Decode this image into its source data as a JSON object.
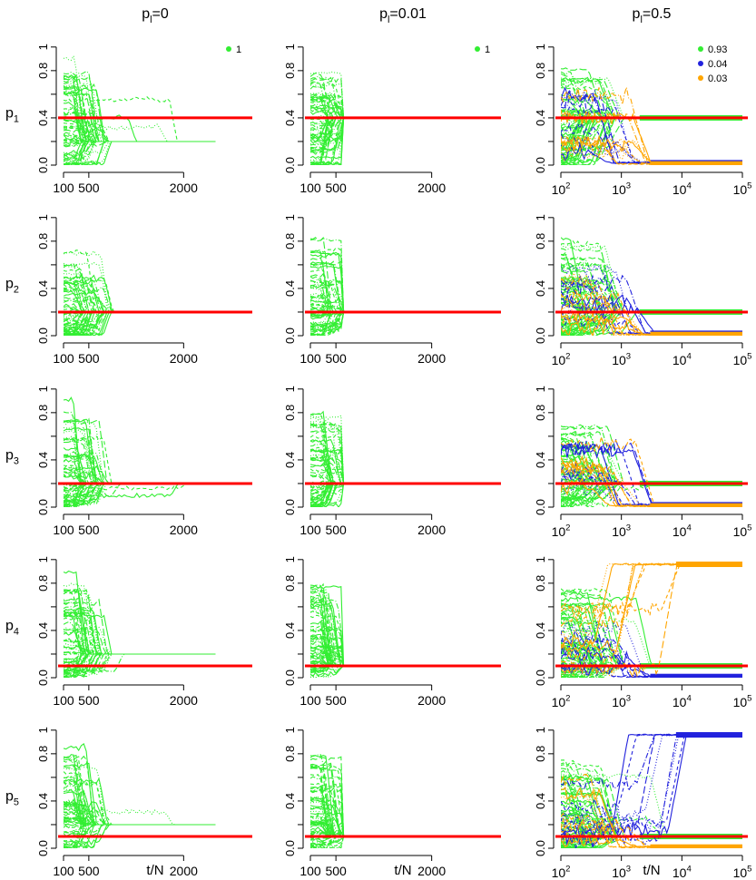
{
  "column_titles": [
    {
      "base": "p",
      "sub": "l",
      "rest": "=0"
    },
    {
      "base": "p",
      "sub": "l",
      "rest": "=0.01"
    },
    {
      "base": "p",
      "sub": "l",
      "rest": "=0.5"
    }
  ],
  "row_labels": [
    {
      "base": "p",
      "sub": "1"
    },
    {
      "base": "p",
      "sub": "2"
    },
    {
      "base": "p",
      "sub": "3"
    },
    {
      "base": "p",
      "sub": "4"
    },
    {
      "base": "p",
      "sub": "5"
    }
  ],
  "xlabel": "t/N",
  "colors": {
    "green": "#33ee33",
    "blue": "#2222dd",
    "orange": "#ffa500",
    "red": "#ff0000",
    "axis": "#000000"
  },
  "yaxis": {
    "ylim": [
      0,
      1
    ],
    "ticks": [
      "0.0",
      "0.4",
      "0.8"
    ],
    "unlabeled_ticks": [
      "0.2",
      "0.6",
      "1"
    ]
  },
  "xaxis_linear": {
    "xlim": [
      100,
      3000
    ],
    "ticks": [
      "100",
      "500",
      "2000"
    ]
  },
  "xaxis_log": {
    "xlim": [
      100,
      100000
    ],
    "scale": "log",
    "ticks": [
      {
        "base": "10",
        "exp": "2"
      },
      {
        "base": "10",
        "exp": "3"
      },
      {
        "base": "10",
        "exp": "4"
      },
      {
        "base": "10",
        "exp": "5"
      }
    ]
  },
  "legends": [
    {
      "entries": [
        {
          "label": "1",
          "color": "#33ee33"
        }
      ]
    },
    {
      "entries": [
        {
          "label": "1",
          "color": "#33ee33"
        }
      ]
    },
    {
      "entries": [
        {
          "label": "0.93",
          "color": "#33ee33"
        },
        {
          "label": "0.04",
          "color": "#2222dd"
        },
        {
          "label": "0.03",
          "color": "#ffa500"
        }
      ]
    }
  ],
  "chart_data": [
    {
      "type": "line",
      "row": "p1",
      "column": "pl=0",
      "x_scale": "linear",
      "true_value": 0.4,
      "series": [
        {
          "name": "1",
          "color": "#33ee33",
          "converged_value": 0.2
        }
      ]
    },
    {
      "type": "line",
      "row": "p1",
      "column": "pl=0.01",
      "x_scale": "linear",
      "true_value": 0.4,
      "series": [
        {
          "name": "1",
          "color": "#33ee33",
          "converged_value": 0.4
        }
      ]
    },
    {
      "type": "line",
      "row": "p1",
      "column": "pl=0.5",
      "x_scale": "log",
      "true_value": 0.4,
      "series": [
        {
          "name": "0.93",
          "color": "#33ee33",
          "converged_value": 0.4
        },
        {
          "name": "0.04",
          "color": "#2222dd",
          "converged_value": 0.02
        },
        {
          "name": "0.03",
          "color": "#ffa500",
          "converged_value": 0.01
        }
      ]
    },
    {
      "type": "line",
      "row": "p2",
      "column": "pl=0",
      "x_scale": "linear",
      "true_value": 0.2,
      "series": [
        {
          "name": "1",
          "color": "#33ee33",
          "converged_value": 0.2
        }
      ]
    },
    {
      "type": "line",
      "row": "p2",
      "column": "pl=0.01",
      "x_scale": "linear",
      "true_value": 0.2,
      "series": [
        {
          "name": "1",
          "color": "#33ee33",
          "converged_value": 0.2
        }
      ]
    },
    {
      "type": "line",
      "row": "p2",
      "column": "pl=0.5",
      "x_scale": "log",
      "true_value": 0.2,
      "series": [
        {
          "name": "0.93",
          "color": "#33ee33",
          "converged_value": 0.2
        },
        {
          "name": "0.04",
          "color": "#2222dd",
          "converged_value": 0.02
        },
        {
          "name": "0.03",
          "color": "#ffa500",
          "converged_value": 0.01
        }
      ]
    },
    {
      "type": "line",
      "row": "p3",
      "column": "pl=0",
      "x_scale": "linear",
      "true_value": 0.2,
      "series": [
        {
          "name": "1",
          "color": "#33ee33",
          "converged_value": 0.2
        }
      ]
    },
    {
      "type": "line",
      "row": "p3",
      "column": "pl=0.01",
      "x_scale": "linear",
      "true_value": 0.2,
      "series": [
        {
          "name": "1",
          "color": "#33ee33",
          "converged_value": 0.2
        }
      ]
    },
    {
      "type": "line",
      "row": "p3",
      "column": "pl=0.5",
      "x_scale": "log",
      "true_value": 0.2,
      "series": [
        {
          "name": "0.93",
          "color": "#33ee33",
          "converged_value": 0.2
        },
        {
          "name": "0.04",
          "color": "#2222dd",
          "converged_value": 0.02
        },
        {
          "name": "0.03",
          "color": "#ffa500",
          "converged_value": 0.01
        }
      ]
    },
    {
      "type": "line",
      "row": "p4",
      "column": "pl=0",
      "x_scale": "linear",
      "true_value": 0.1,
      "series": [
        {
          "name": "1",
          "color": "#33ee33",
          "converged_value": 0.2
        }
      ]
    },
    {
      "type": "line",
      "row": "p4",
      "column": "pl=0.01",
      "x_scale": "linear",
      "true_value": 0.1,
      "series": [
        {
          "name": "1",
          "color": "#33ee33",
          "converged_value": 0.1
        }
      ]
    },
    {
      "type": "line",
      "row": "p4",
      "column": "pl=0.5",
      "x_scale": "log",
      "true_value": 0.1,
      "series": [
        {
          "name": "0.93",
          "color": "#33ee33",
          "converged_value": 0.1
        },
        {
          "name": "0.04",
          "color": "#2222dd",
          "converged_value": 0.01
        },
        {
          "name": "0.03",
          "color": "#ffa500",
          "converged_value": 0.96
        }
      ]
    },
    {
      "type": "line",
      "row": "p5",
      "column": "pl=0",
      "x_scale": "linear",
      "true_value": 0.1,
      "series": [
        {
          "name": "1",
          "color": "#33ee33",
          "converged_value": 0.2
        }
      ]
    },
    {
      "type": "line",
      "row": "p5",
      "column": "pl=0.01",
      "x_scale": "linear",
      "true_value": 0.1,
      "series": [
        {
          "name": "1",
          "color": "#33ee33",
          "converged_value": 0.1
        }
      ]
    },
    {
      "type": "line",
      "row": "p5",
      "column": "pl=0.5",
      "x_scale": "log",
      "true_value": 0.1,
      "series": [
        {
          "name": "0.93",
          "color": "#33ee33",
          "converged_value": 0.1
        },
        {
          "name": "0.04",
          "color": "#2222dd",
          "converged_value": 0.96
        },
        {
          "name": "0.03",
          "color": "#ffa500",
          "converged_value": 0.01
        }
      ]
    }
  ]
}
